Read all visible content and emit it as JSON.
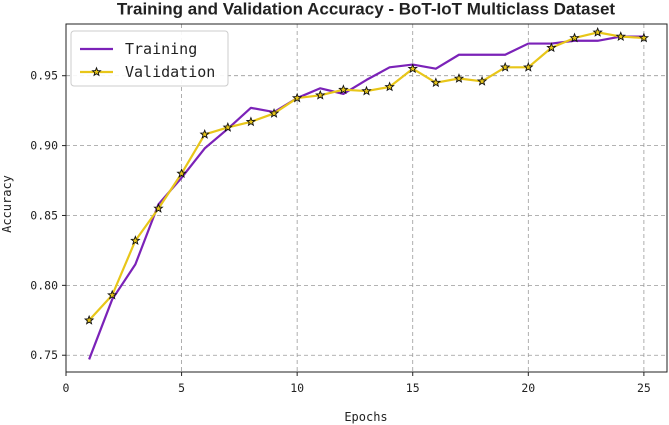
{
  "chart_data": {
    "type": "line",
    "title": "Training and Validation Accuracy - BoT-IoT Multiclass Dataset",
    "xlabel": "Epochs",
    "ylabel": "Accuracy",
    "xlim": [
      0,
      26
    ],
    "ylim": [
      0.738,
      0.987
    ],
    "xticks": [
      0,
      5,
      10,
      15,
      20,
      25
    ],
    "yticks": [
      0.75,
      0.8,
      0.85,
      0.9,
      0.95
    ],
    "grid": true,
    "legend_position": "top-left",
    "x": [
      1,
      2,
      3,
      4,
      5,
      6,
      7,
      8,
      9,
      10,
      11,
      12,
      13,
      14,
      15,
      16,
      17,
      18,
      19,
      20,
      21,
      22,
      23,
      24,
      25
    ],
    "series": [
      {
        "name": "Training",
        "color": "#7b22b8",
        "marker": "none",
        "values": [
          0.747,
          0.79,
          0.815,
          0.858,
          0.877,
          0.898,
          0.912,
          0.927,
          0.924,
          0.934,
          0.941,
          0.937,
          0.947,
          0.956,
          0.958,
          0.955,
          0.965,
          0.965,
          0.965,
          0.973,
          0.973,
          0.975,
          0.975,
          0.978,
          0.978
        ]
      },
      {
        "name": "Validation",
        "color": "#e8c619",
        "marker": "star",
        "values": [
          0.775,
          0.793,
          0.832,
          0.855,
          0.88,
          0.908,
          0.913,
          0.917,
          0.923,
          0.934,
          0.936,
          0.94,
          0.939,
          0.942,
          0.955,
          0.945,
          0.948,
          0.946,
          0.956,
          0.956,
          0.97,
          0.977,
          0.981,
          0.978,
          0.977
        ]
      }
    ]
  }
}
